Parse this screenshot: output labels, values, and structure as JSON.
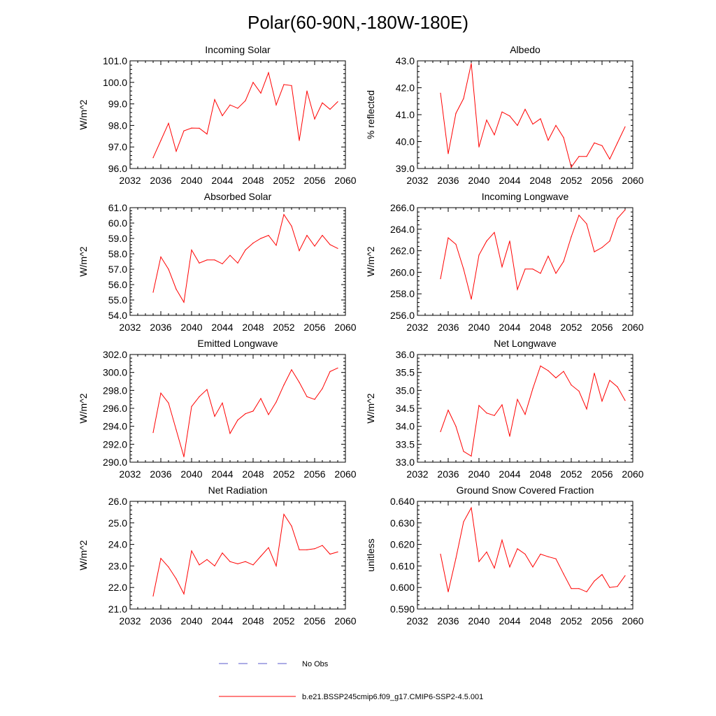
{
  "main_title": "Polar(60-90N,-180W-180E)",
  "colors": {
    "series": "#ff0000",
    "obs": "#5a5acd",
    "axis": "#000000"
  },
  "legend": {
    "obs_label": "No Obs",
    "series_label": "b.e21.BSSP245cmip6.f09_g17.CMIP6-SSP2-4.5.001"
  },
  "chart_data": [
    {
      "type": "line",
      "title": "Incoming Solar",
      "ylabel": "W/m^2",
      "xlim": [
        2032,
        2060
      ],
      "ylim": [
        96.0,
        101.0
      ],
      "xticks": [
        2032,
        2036,
        2040,
        2044,
        2048,
        2052,
        2056,
        2060
      ],
      "yticks": [
        "96.0",
        "97.0",
        "98.0",
        "99.0",
        "100.0",
        "101.0"
      ],
      "x": [
        2035,
        2036,
        2037,
        2038,
        2039,
        2040,
        2041,
        2042,
        2043,
        2044,
        2045,
        2046,
        2047,
        2048,
        2049,
        2050,
        2051,
        2052,
        2053,
        2054,
        2055,
        2056,
        2057,
        2058,
        2059
      ],
      "y": [
        96.5,
        97.3,
        98.1,
        96.8,
        97.75,
        97.88,
        97.87,
        97.6,
        99.2,
        98.45,
        98.95,
        98.8,
        99.15,
        100.0,
        99.5,
        100.45,
        98.95,
        99.9,
        99.85,
        97.3,
        99.6,
        98.3,
        99.05,
        98.75,
        99.1
      ]
    },
    {
      "type": "line",
      "title": "Albedo",
      "ylabel": "% reflected",
      "xlim": [
        2032,
        2060
      ],
      "ylim": [
        39.0,
        43.0
      ],
      "xticks": [
        2032,
        2036,
        2040,
        2044,
        2048,
        2052,
        2056,
        2060
      ],
      "yticks": [
        "39.0",
        "40.0",
        "41.0",
        "42.0",
        "43.0"
      ],
      "x": [
        2035,
        2036,
        2037,
        2038,
        2039,
        2040,
        2041,
        2042,
        2043,
        2044,
        2045,
        2046,
        2047,
        2048,
        2049,
        2050,
        2051,
        2052,
        2053,
        2054,
        2055,
        2056,
        2057,
        2058,
        2059
      ],
      "y": [
        41.8,
        39.55,
        41.05,
        41.6,
        42.9,
        39.8,
        40.8,
        40.25,
        41.1,
        40.95,
        40.6,
        41.2,
        40.65,
        40.85,
        40.05,
        40.6,
        40.15,
        39.05,
        39.45,
        39.45,
        39.95,
        39.85,
        39.35,
        39.95,
        40.55
      ]
    },
    {
      "type": "line",
      "title": "Absorbed Solar",
      "ylabel": "W/m^2",
      "xlim": [
        2032,
        2060
      ],
      "ylim": [
        54.0,
        61.0
      ],
      "xticks": [
        2032,
        2036,
        2040,
        2044,
        2048,
        2052,
        2056,
        2060
      ],
      "yticks": [
        "54.0",
        "55.0",
        "56.0",
        "57.0",
        "58.0",
        "59.0",
        "60.0",
        "61.0"
      ],
      "x": [
        2035,
        2036,
        2037,
        2038,
        2039,
        2040,
        2041,
        2042,
        2043,
        2044,
        2045,
        2046,
        2047,
        2048,
        2049,
        2050,
        2051,
        2052,
        2053,
        2054,
        2055,
        2056,
        2057,
        2058,
        2059
      ],
      "y": [
        55.5,
        57.8,
        57.0,
        55.7,
        54.85,
        58.25,
        57.4,
        57.6,
        57.6,
        57.35,
        57.9,
        57.4,
        58.25,
        58.7,
        59.0,
        59.2,
        58.55,
        60.55,
        59.8,
        58.2,
        59.2,
        58.5,
        59.2,
        58.6,
        58.35
      ]
    },
    {
      "type": "line",
      "title": "Incoming Longwave",
      "ylabel": "W/m^2",
      "xlim": [
        2032,
        2060
      ],
      "ylim": [
        256.0,
        266.0
      ],
      "xticks": [
        2032,
        2036,
        2040,
        2044,
        2048,
        2052,
        2056,
        2060
      ],
      "yticks": [
        "256.0",
        "258.0",
        "260.0",
        "262.0",
        "264.0",
        "266.0"
      ],
      "x": [
        2035,
        2036,
        2037,
        2038,
        2039,
        2040,
        2041,
        2042,
        2043,
        2044,
        2045,
        2046,
        2047,
        2048,
        2049,
        2050,
        2051,
        2052,
        2053,
        2054,
        2055,
        2056,
        2057,
        2058,
        2059
      ],
      "y": [
        259.4,
        263.2,
        262.6,
        260.3,
        257.5,
        261.6,
        262.9,
        263.7,
        260.5,
        262.9,
        258.4,
        260.3,
        260.3,
        259.9,
        261.5,
        259.9,
        261.0,
        263.3,
        265.3,
        264.5,
        261.9,
        262.3,
        262.9,
        265.0,
        265.8
      ]
    },
    {
      "type": "line",
      "title": "Emitted Longwave",
      "ylabel": "W/m^2",
      "xlim": [
        2032,
        2060
      ],
      "ylim": [
        290.0,
        302.0
      ],
      "xticks": [
        2032,
        2036,
        2040,
        2044,
        2048,
        2052,
        2056,
        2060
      ],
      "yticks": [
        "290.0",
        "292.0",
        "294.0",
        "296.0",
        "298.0",
        "300.0",
        "302.0"
      ],
      "x": [
        2035,
        2036,
        2037,
        2038,
        2039,
        2040,
        2041,
        2042,
        2043,
        2044,
        2045,
        2046,
        2047,
        2048,
        2049,
        2050,
        2051,
        2052,
        2053,
        2054,
        2055,
        2056,
        2057,
        2058,
        2059
      ],
      "y": [
        293.3,
        297.7,
        296.6,
        293.6,
        290.6,
        296.2,
        297.3,
        298.1,
        295.1,
        296.6,
        293.2,
        294.7,
        295.4,
        295.7,
        297.1,
        295.3,
        296.7,
        298.6,
        300.3,
        298.9,
        297.3,
        297.0,
        298.2,
        300.1,
        300.5
      ]
    },
    {
      "type": "line",
      "title": "Net Longwave",
      "ylabel": "W/m^2",
      "xlim": [
        2032,
        2060
      ],
      "ylim": [
        33.0,
        36.0
      ],
      "xticks": [
        2032,
        2036,
        2040,
        2044,
        2048,
        2052,
        2056,
        2060
      ],
      "yticks": [
        "33.0",
        "33.5",
        "34.0",
        "34.5",
        "35.0",
        "35.5",
        "36.0"
      ],
      "x": [
        2035,
        2036,
        2037,
        2038,
        2039,
        2040,
        2041,
        2042,
        2043,
        2044,
        2045,
        2046,
        2047,
        2048,
        2049,
        2050,
        2051,
        2052,
        2053,
        2054,
        2055,
        2056,
        2057,
        2058,
        2059
      ],
      "y": [
        33.85,
        34.45,
        34.0,
        33.3,
        33.17,
        34.58,
        34.37,
        34.3,
        34.6,
        33.72,
        34.75,
        34.33,
        35.05,
        35.68,
        35.55,
        35.35,
        35.53,
        35.15,
        34.98,
        34.48,
        35.48,
        34.7,
        35.28,
        35.1,
        34.72
      ]
    },
    {
      "type": "line",
      "title": "Net Radiation",
      "ylabel": "W/m^2",
      "xlim": [
        2032,
        2060
      ],
      "ylim": [
        21.0,
        26.0
      ],
      "xticks": [
        2032,
        2036,
        2040,
        2044,
        2048,
        2052,
        2056,
        2060
      ],
      "yticks": [
        "21.0",
        "22.0",
        "23.0",
        "24.0",
        "25.0",
        "26.0"
      ],
      "x": [
        2035,
        2036,
        2037,
        2038,
        2039,
        2040,
        2041,
        2042,
        2043,
        2044,
        2045,
        2046,
        2047,
        2048,
        2049,
        2050,
        2051,
        2052,
        2053,
        2054,
        2055,
        2056,
        2057,
        2058,
        2059
      ],
      "y": [
        21.6,
        23.35,
        22.95,
        22.4,
        21.7,
        23.7,
        23.05,
        23.3,
        23.0,
        23.6,
        23.2,
        23.1,
        23.2,
        23.05,
        23.45,
        23.85,
        23.0,
        25.4,
        24.85,
        23.75,
        23.75,
        23.8,
        23.95,
        23.55,
        23.65
      ]
    },
    {
      "type": "line",
      "title": "Ground Snow Covered Fraction",
      "ylabel": "unitless",
      "xlim": [
        2032,
        2060
      ],
      "ylim": [
        0.59,
        0.64
      ],
      "xticks": [
        2032,
        2036,
        2040,
        2044,
        2048,
        2052,
        2056,
        2060
      ],
      "yticks": [
        "0.590",
        "0.600",
        "0.610",
        "0.620",
        "0.630",
        "0.640"
      ],
      "x": [
        2035,
        2036,
        2037,
        2038,
        2039,
        2040,
        2041,
        2042,
        2043,
        2044,
        2045,
        2046,
        2047,
        2048,
        2049,
        2050,
        2051,
        2052,
        2053,
        2054,
        2055,
        2056,
        2057,
        2058,
        2059
      ],
      "y": [
        0.6155,
        0.598,
        0.6135,
        0.6305,
        0.637,
        0.612,
        0.6165,
        0.609,
        0.622,
        0.6095,
        0.618,
        0.6155,
        0.6095,
        0.6155,
        0.6143,
        0.6133,
        0.6063,
        0.5995,
        0.5995,
        0.598,
        0.603,
        0.606,
        0.6,
        0.6005,
        0.6055
      ]
    }
  ]
}
